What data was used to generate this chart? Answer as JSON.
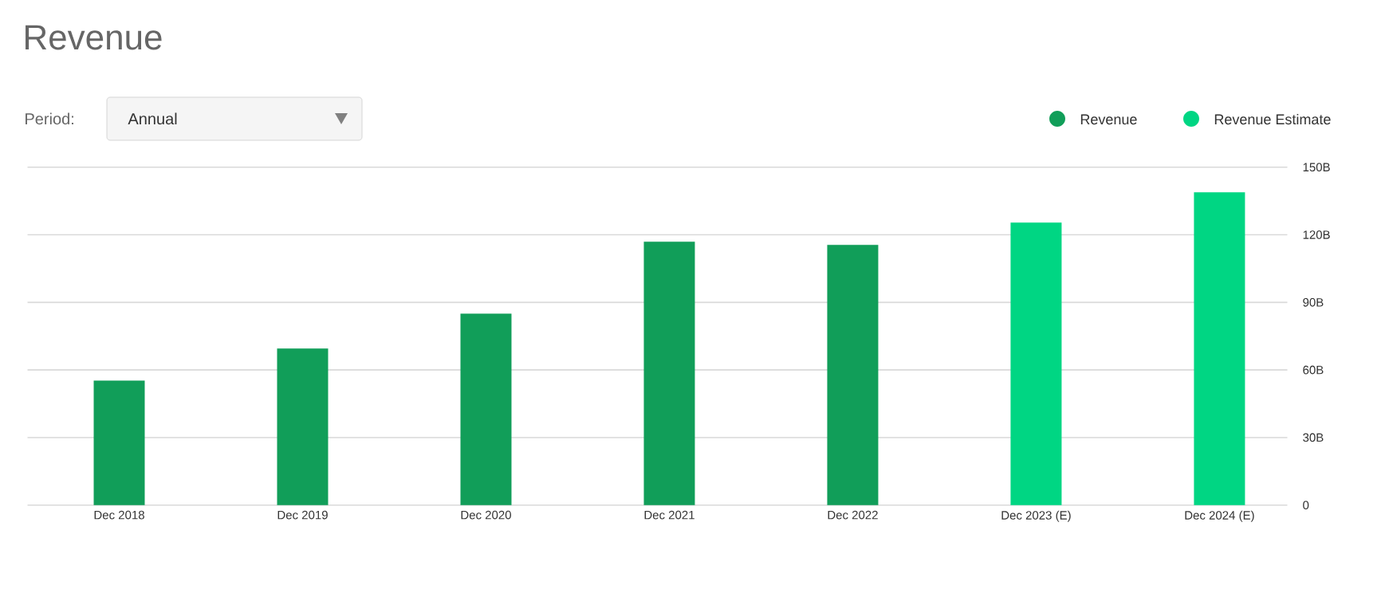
{
  "chart_data": {
    "type": "bar",
    "title": "Revenue",
    "annotations": [
      "Period:",
      "Annual"
    ],
    "categories": [
      "Dec 2018",
      "Dec 2019",
      "Dec 2020",
      "Dec 2021",
      "Dec 2022",
      "Dec 2023 (E)",
      "Dec 2024 (E)"
    ],
    "series": [
      {
        "name": "Revenue",
        "color": "#119e59",
        "values": [
          55.3,
          69.5,
          85.0,
          116.9,
          115.5,
          null,
          null
        ]
      },
      {
        "name": "Revenue Estimate",
        "color": "#00d683",
        "values": [
          null,
          null,
          null,
          null,
          null,
          125.4,
          138.9
        ]
      }
    ],
    "ylim": [
      0,
      150
    ],
    "yticks": [
      0,
      {
        "value": 30,
        "label": "30B"
      },
      {
        "value": 60,
        "label": "60B"
      },
      {
        "value": 90,
        "label": "90B"
      },
      {
        "value": 120,
        "label": "120B"
      },
      {
        "value": 150,
        "label": "150B"
      }
    ],
    "grid": "y",
    "legend": "top right"
  }
}
